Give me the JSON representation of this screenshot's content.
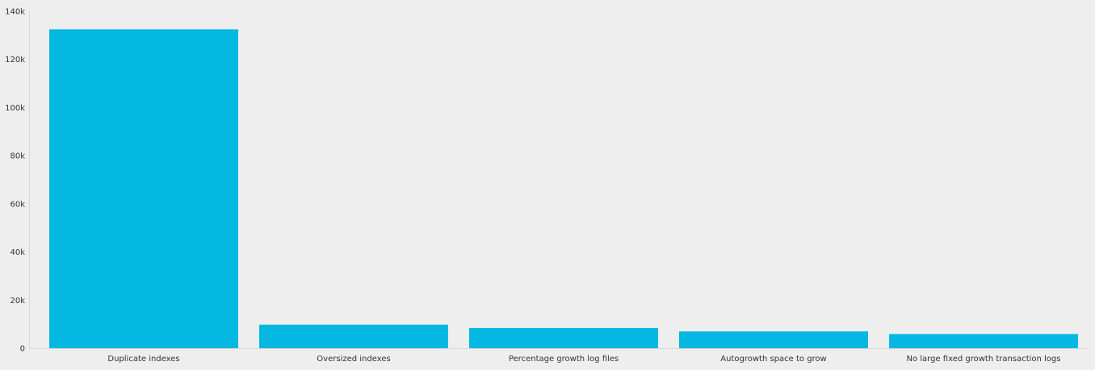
{
  "colors": {
    "background": "#eeeeee",
    "bar": "#05b8e2",
    "axis": "#d8d8d8",
    "text": "#333333"
  },
  "chart_data": {
    "type": "bar",
    "categories": [
      "Duplicate indexes",
      "Oversized indexes",
      "Percentage growth log files",
      "Autogrowth space to grow",
      "No large fixed growth transaction logs"
    ],
    "values": [
      132500,
      9800,
      8400,
      7000,
      5900
    ],
    "yticks": [
      "0",
      "20k",
      "40k",
      "60k",
      "80k",
      "100k",
      "120k",
      "140k"
    ],
    "ylim": [
      0,
      140000
    ],
    "grid": false,
    "legend": "none",
    "title": "",
    "xlabel": "",
    "ylabel": ""
  }
}
